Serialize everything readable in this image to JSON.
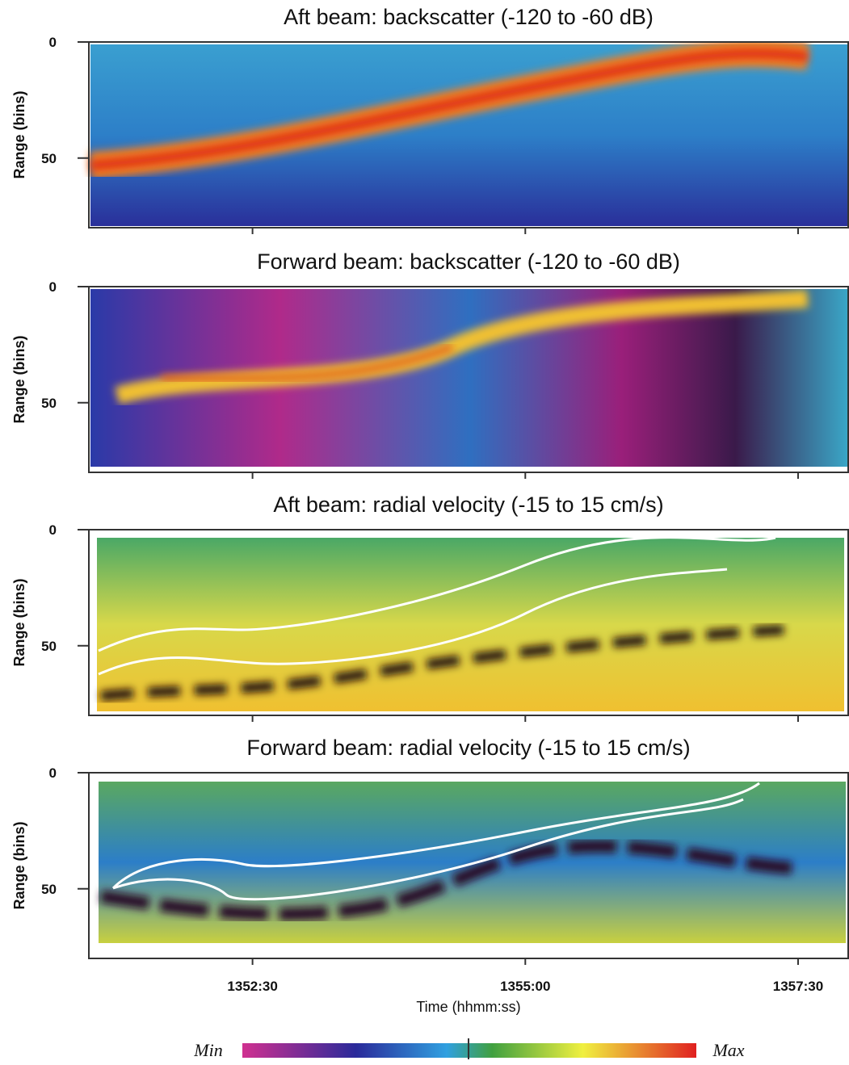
{
  "chart_data": [
    {
      "type": "heatmap",
      "title": "Aft beam: backscatter (-120 to -60 dB)",
      "ylabel": "Range (bins)",
      "ylim": [
        0,
        80
      ],
      "yticks": [
        0,
        50
      ],
      "xlim": [
        49860,
        50278
      ],
      "xticks": [
        {
          "value": 49950,
          "label": "1352:30"
        },
        {
          "value": 50100,
          "label": "1355:00"
        },
        {
          "value": 50250,
          "label": "1357:30"
        }
      ]
    },
    {
      "type": "heatmap",
      "title": "Forward beam: backscatter (-120 to -60 dB)",
      "ylabel": "Range (bins)",
      "ylim": [
        0,
        80
      ],
      "yticks": [
        0,
        50
      ],
      "xlim": [
        49860,
        50278
      ],
      "xticks": [
        {
          "value": 49950,
          "label": "1352:30"
        },
        {
          "value": 50100,
          "label": "1355:00"
        },
        {
          "value": 50250,
          "label": "1357:30"
        }
      ]
    },
    {
      "type": "heatmap",
      "title": "Aft beam: radial velocity (-15 to 15 cm/s)",
      "ylabel": "Range (bins)",
      "ylim": [
        0,
        80
      ],
      "yticks": [
        0,
        50
      ],
      "xlim": [
        49860,
        50278
      ],
      "xticks": [
        {
          "value": 49950,
          "label": "1352:30"
        },
        {
          "value": 50100,
          "label": "1355:00"
        },
        {
          "value": 50250,
          "label": "1357:30"
        }
      ]
    },
    {
      "type": "heatmap",
      "title": "Forward beam: radial velocity (-15 to 15 cm/s)",
      "ylabel": "Range (bins)",
      "xlabel": "Time (hhmm:ss)",
      "ylim": [
        0,
        80
      ],
      "yticks": [
        0,
        50
      ],
      "xlim": [
        49860,
        50278
      ],
      "xticks": [
        {
          "value": 49950,
          "label": "1352:30"
        },
        {
          "value": 50100,
          "label": "1355:00"
        },
        {
          "value": 50250,
          "label": "1357:30"
        }
      ],
      "colorbar": {
        "min_label": "Min",
        "max_label": "Max"
      }
    }
  ]
}
